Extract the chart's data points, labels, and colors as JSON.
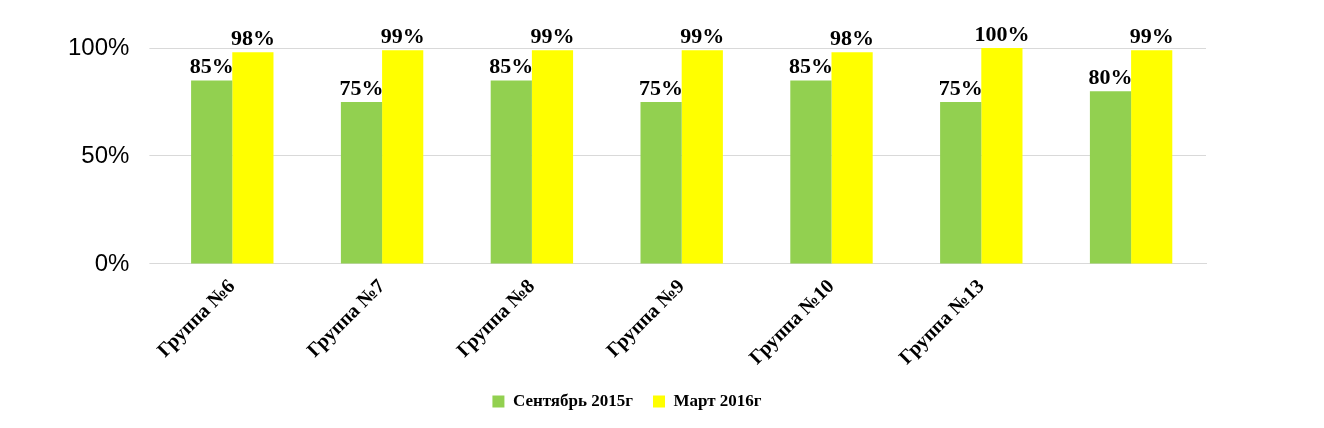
{
  "chart_data": {
    "type": "bar",
    "categories": [
      "Группа №6",
      "Группа №7",
      "Группа №8",
      "Группа №9",
      "Группа №10",
      "Группа №13",
      null
    ],
    "series": [
      {
        "name": "Сентябрь 2015г",
        "color": "#92d050",
        "values": [
          85,
          75,
          85,
          75,
          85,
          75,
          80
        ],
        "value_labels": [
          "85%",
          "75%",
          "85%",
          "75%",
          "85%",
          "75%",
          "80%"
        ]
      },
      {
        "name": "Март 2016г",
        "color": "#ffff00",
        "values": [
          98,
          99,
          99,
          99,
          98,
          100,
          99
        ],
        "value_labels": [
          "98%",
          "99%",
          "99%",
          "99%",
          "98%",
          "100%",
          "99%"
        ]
      }
    ],
    "ylim": [
      0,
      100
    ],
    "yticks": [
      {
        "value": 0,
        "label": "0%"
      },
      {
        "value": 50,
        "label": "50%"
      },
      {
        "value": 100,
        "label": "100%"
      }
    ],
    "grid": "y",
    "legend": "bottom"
  }
}
